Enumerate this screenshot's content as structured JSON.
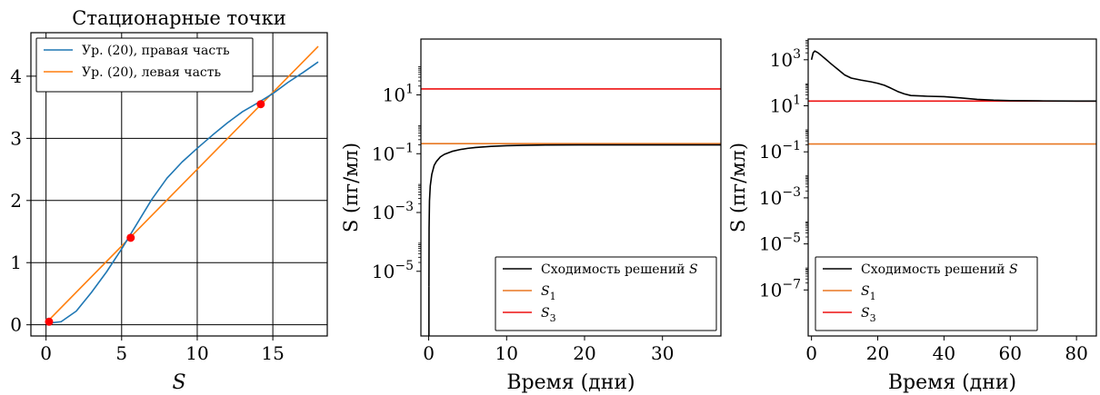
{
  "chart_data": [
    {
      "type": "line",
      "title": "Стационарные точки",
      "xlabel": "S",
      "ylabel": "",
      "xlim": [
        -1,
        18.6
      ],
      "ylim": [
        -0.18,
        4.7
      ],
      "xticks": [
        0,
        5,
        10,
        15
      ],
      "xtick_labels": [
        "0",
        "5",
        "10",
        "15"
      ],
      "yticks": [
        0,
        1,
        2,
        3,
        4
      ],
      "ytick_labels": [
        "0",
        "1",
        "2",
        "3",
        "4"
      ],
      "grid": true,
      "legend_position": "top-left",
      "series": [
        {
          "name": "Ур. (20), правая часть",
          "color": "#1f77b4",
          "x": [
            0,
            1,
            2,
            3,
            4,
            5,
            6,
            7,
            8,
            9,
            10,
            11,
            12,
            13,
            14,
            15,
            16,
            17,
            18
          ],
          "y": [
            0.02,
            0.05,
            0.22,
            0.52,
            0.85,
            1.22,
            1.62,
            2.02,
            2.36,
            2.62,
            2.84,
            3.05,
            3.25,
            3.43,
            3.57,
            3.72,
            3.9,
            4.06,
            4.23
          ]
        },
        {
          "name": "Ур. (20), левая часть",
          "color": "#ff7f0e",
          "x": [
            0,
            18
          ],
          "y": [
            0.03,
            4.48
          ]
        }
      ],
      "points": {
        "color": "#ff0000",
        "x": [
          0.2,
          5.6,
          14.2
        ],
        "y": [
          0.05,
          1.4,
          3.55
        ]
      }
    },
    {
      "type": "line",
      "title": "",
      "xlabel": "Время (дни)",
      "ylabel": "S (пг/мл)",
      "yscale": "log",
      "xlim": [
        -1,
        37.5
      ],
      "ylim_log10": [
        -7.2,
        2.9
      ],
      "xticks": [
        0,
        10,
        20,
        30
      ],
      "xtick_labels": [
        "0",
        "10",
        "20",
        "30"
      ],
      "yticks_log10": [
        -5,
        -3,
        -1,
        1
      ],
      "grid": false,
      "legend_position": "lower-right",
      "series": [
        {
          "name": "Сходимость решений S",
          "color": "#000000",
          "x": [
            0.03,
            0.05,
            0.1,
            0.2,
            0.4,
            0.7,
            1,
            1.5,
            2,
            3,
            4,
            5,
            6,
            8,
            10,
            12,
            15,
            20,
            25,
            30,
            37.5
          ],
          "y": [
            3e-06,
            0.0003,
            0.0025,
            0.008,
            0.02,
            0.04,
            0.055,
            0.078,
            0.095,
            0.12,
            0.138,
            0.152,
            0.163,
            0.178,
            0.187,
            0.193,
            0.198,
            0.2,
            0.2,
            0.2,
            0.2
          ]
        },
        {
          "name": "S_1",
          "color": "#e87722",
          "x": [
            -1,
            37.5
          ],
          "y": [
            0.22,
            0.22
          ]
        },
        {
          "name": "S_3",
          "color": "#ee1111",
          "x": [
            -1,
            37.5
          ],
          "y": [
            16,
            16
          ]
        }
      ]
    },
    {
      "type": "line",
      "title": "",
      "xlabel": "Время (дни)",
      "ylabel": "S (пг/мл)",
      "yscale": "log",
      "xlim": [
        -1,
        86
      ],
      "ylim_log10": [
        -9,
        3.9
      ],
      "xticks": [
        0,
        20,
        40,
        60,
        80
      ],
      "xtick_labels": [
        "0",
        "20",
        "40",
        "60",
        "80"
      ],
      "yticks_log10": [
        -7,
        -5,
        -3,
        -1,
        1,
        3
      ],
      "grid": false,
      "legend_position": "lower-left",
      "series": [
        {
          "name": "Сходимость решений S",
          "color": "#000000",
          "x": [
            0,
            0.5,
            1,
            2,
            4,
            6,
            8,
            10,
            12,
            15,
            18,
            20,
            22,
            24,
            26,
            28,
            30,
            35,
            40,
            45,
            50,
            55,
            60,
            70,
            80,
            86
          ],
          "y": [
            1000,
            2000,
            2400,
            2000,
            1150,
            650,
            380,
            220,
            160,
            130,
            110,
            95,
            78,
            58,
            42,
            33,
            28,
            26,
            25,
            22,
            19,
            17.5,
            16.8,
            16.3,
            16.1,
            16
          ]
        },
        {
          "name": "S_1",
          "color": "#e87722",
          "x": [
            -1,
            86
          ],
          "y": [
            0.22,
            0.22
          ]
        },
        {
          "name": "S_3",
          "color": "#ee1111",
          "x": [
            -1,
            86
          ],
          "y": [
            16,
            16
          ]
        }
      ]
    }
  ]
}
